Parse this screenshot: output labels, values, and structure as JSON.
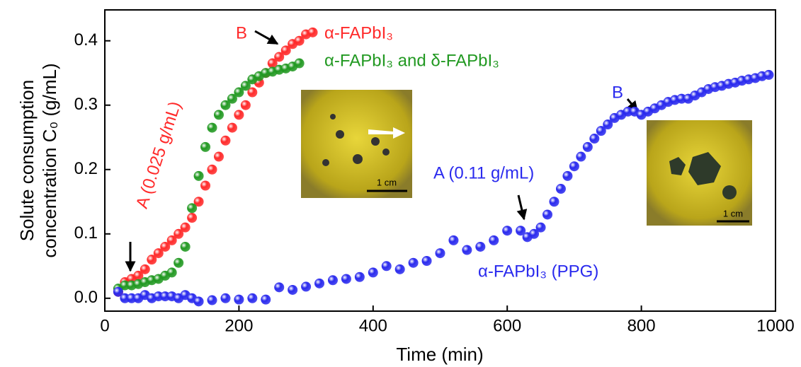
{
  "chart_data": {
    "type": "scatter",
    "x_label": "Time (min)",
    "y_label": [
      "Solute consumption",
      "concentration C₀ (g/mL)"
    ],
    "xlim": [
      0,
      1000
    ],
    "ylim": [
      -0.02,
      0.448
    ],
    "xticks": [
      0,
      200,
      400,
      600,
      800,
      1000
    ],
    "yticks": [
      {
        "value": 0,
        "label": "0.0"
      },
      0.1,
      0.2,
      0.3,
      0.4
    ],
    "annotations": [
      "B",
      "A (0.025 g/mL)",
      "A (0.11 g/mL)",
      "B"
    ],
    "inset_scale_labels": [
      "1 cm",
      "1 cm"
    ],
    "series": [
      {
        "name": "α-FAPbI₃",
        "color": "#ff2a2a",
        "x": [
          20,
          30,
          40,
          50,
          60,
          70,
          80,
          90,
          100,
          110,
          120,
          130,
          140,
          150,
          160,
          170,
          180,
          190,
          200,
          210,
          220,
          230,
          240,
          250,
          260,
          270,
          280,
          290,
          300,
          310
        ],
        "values": [
          0.01,
          0.025,
          0.03,
          0.035,
          0.045,
          0.06,
          0.07,
          0.08,
          0.09,
          0.1,
          0.11,
          0.125,
          0.15,
          0.175,
          0.2,
          0.22,
          0.245,
          0.265,
          0.285,
          0.3,
          0.32,
          0.335,
          0.35,
          0.365,
          0.375,
          0.385,
          0.395,
          0.4,
          0.41,
          0.413
        ]
      },
      {
        "name": "α-FAPbI₃ and δ-FAPbI₃",
        "color": "#229922",
        "x": [
          20,
          30,
          40,
          50,
          60,
          70,
          80,
          90,
          100,
          110,
          120,
          130,
          140,
          150,
          160,
          170,
          180,
          190,
          200,
          210,
          220,
          230,
          240,
          250,
          260,
          270,
          280,
          290
        ],
        "values": [
          0.015,
          0.02,
          0.02,
          0.022,
          0.025,
          0.028,
          0.03,
          0.035,
          0.04,
          0.055,
          0.08,
          0.14,
          0.19,
          0.235,
          0.265,
          0.285,
          0.3,
          0.31,
          0.32,
          0.33,
          0.34,
          0.345,
          0.35,
          0.352,
          0.355,
          0.357,
          0.36,
          0.365
        ]
      },
      {
        "name": "α-FAPbI₃ (PPG)",
        "color": "#2a2aee",
        "x": [
          20,
          30,
          40,
          50,
          60,
          70,
          80,
          90,
          100,
          110,
          120,
          130,
          140,
          160,
          180,
          200,
          220,
          240,
          260,
          280,
          300,
          320,
          340,
          360,
          380,
          400,
          420,
          440,
          460,
          480,
          500,
          520,
          540,
          560,
          580,
          600,
          620,
          630,
          640,
          650,
          660,
          670,
          680,
          690,
          700,
          710,
          720,
          730,
          740,
          750,
          760,
          770,
          780,
          790,
          800,
          810,
          820,
          830,
          840,
          850,
          860,
          870,
          880,
          890,
          900,
          910,
          920,
          930,
          940,
          950,
          960,
          970,
          980,
          990
        ],
        "values": [
          0.01,
          0,
          0,
          0,
          0.005,
          0,
          0.003,
          0.003,
          0.003,
          0,
          0.005,
          0,
          -0.005,
          -0.003,
          0,
          -0.002,
          0,
          -0.002,
          0.017,
          0.013,
          0.018,
          0.023,
          0.028,
          0.03,
          0.033,
          0.04,
          0.05,
          0.045,
          0.055,
          0.058,
          0.07,
          0.09,
          0.075,
          0.08,
          0.09,
          0.105,
          0.105,
          0.095,
          0.1,
          0.11,
          0.13,
          0.15,
          0.17,
          0.19,
          0.205,
          0.22,
          0.235,
          0.248,
          0.26,
          0.27,
          0.28,
          0.285,
          0.29,
          0.29,
          0.285,
          0.29,
          0.295,
          0.3,
          0.305,
          0.308,
          0.31,
          0.31,
          0.315,
          0.32,
          0.325,
          0.328,
          0.33,
          0.333,
          0.335,
          0.338,
          0.34,
          0.342,
          0.345,
          0.347
        ]
      }
    ]
  }
}
